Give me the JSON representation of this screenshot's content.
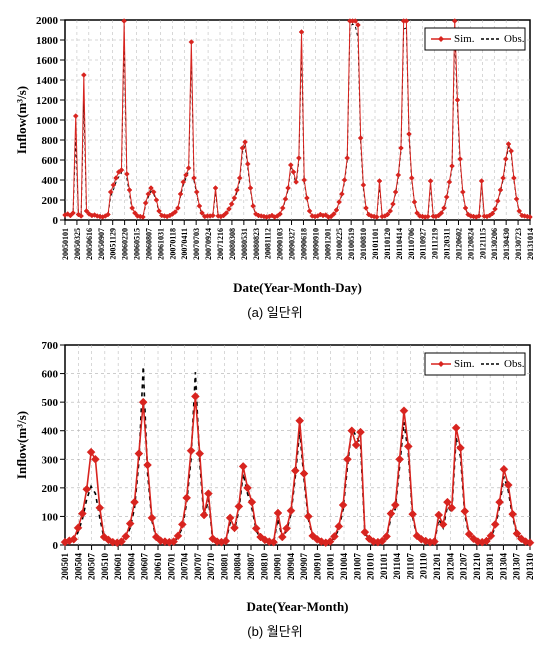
{
  "chartA": {
    "type": "line",
    "xlabel": "Date(Year-Month-Day)",
    "xlabel_fontsize": 13,
    "ylabel": "Inflow(m³/s)",
    "ylabel_fontsize": 13,
    "ylim": [
      0,
      2000
    ],
    "ytick_step": 200,
    "xtick_labels": [
      "20050101",
      "20050325",
      "20050616",
      "20050907",
      "20051129",
      "20060220",
      "20060515",
      "20060807",
      "20061031",
      "20070118",
      "20070411",
      "20070703",
      "20070924",
      "20071216",
      "20080308",
      "20080531",
      "20080823",
      "20081112",
      "20090103",
      "20090327",
      "20090618",
      "20090910",
      "20091201",
      "20100225",
      "20100519",
      "20100810",
      "20101101",
      "20110120",
      "20110414",
      "20110706",
      "20110927",
      "20111219",
      "20120311",
      "20120602",
      "20120824",
      "20121115",
      "20130206",
      "20130430",
      "20130723",
      "20131014"
    ],
    "legend": [
      "Sim.",
      "Obs."
    ],
    "sim_color": "#d8241f",
    "obs_color": "#000000",
    "grid_color": "#b0b0b0",
    "axis_color": "#000000",
    "background_color": "#ffffff",
    "sim_line_width": 1.0,
    "obs_line_width": 1.0,
    "marker_style_sim": "diamond",
    "marker_size_sim": 2.5,
    "obs_dash": "3,3",
    "caption": "(a) 일단위",
    "series_sim": [
      50,
      60,
      45,
      70,
      1040,
      55,
      40,
      1450,
      90,
      60,
      45,
      50,
      40,
      35,
      30,
      40,
      55,
      280,
      350,
      420,
      480,
      500,
      1990,
      460,
      300,
      120,
      70,
      40,
      35,
      30,
      170,
      260,
      320,
      280,
      200,
      90,
      45,
      40,
      35,
      45,
      60,
      80,
      120,
      260,
      380,
      450,
      520,
      1780,
      420,
      280,
      140,
      70,
      35,
      40,
      40,
      45,
      320,
      40,
      35,
      45,
      70,
      110,
      160,
      220,
      300,
      420,
      720,
      780,
      560,
      320,
      140,
      60,
      45,
      40,
      35,
      30,
      35,
      45,
      30,
      40,
      60,
      120,
      210,
      320,
      550,
      480,
      380,
      620,
      1880,
      400,
      220,
      90,
      40,
      35,
      40,
      55,
      45,
      50,
      30,
      35,
      60,
      100,
      180,
      260,
      400,
      620,
      1990,
      1990,
      1990,
      1950,
      820,
      350,
      120,
      55,
      40,
      35,
      30,
      390,
      35,
      40,
      55,
      90,
      160,
      280,
      450,
      720,
      1990,
      1990,
      860,
      420,
      180,
      70,
      40,
      35,
      30,
      35,
      390,
      38,
      35,
      45,
      70,
      120,
      230,
      380,
      540,
      1990,
      1200,
      610,
      280,
      120,
      55,
      40,
      35,
      30,
      40,
      390,
      38,
      35,
      45,
      65,
      110,
      190,
      300,
      420,
      610,
      760,
      690,
      420,
      210,
      90,
      45,
      40,
      35,
      30
    ],
    "series_obs": [
      40,
      50,
      40,
      60,
      820,
      45,
      35,
      1200,
      75,
      50,
      40,
      45,
      35,
      28,
      25,
      35,
      45,
      240,
      300,
      380,
      430,
      470,
      1820,
      420,
      260,
      100,
      60,
      35,
      30,
      28,
      150,
      230,
      290,
      260,
      180,
      80,
      40,
      35,
      30,
      40,
      55,
      70,
      110,
      240,
      350,
      420,
      490,
      1650,
      390,
      260,
      125,
      60,
      30,
      35,
      35,
      40,
      280,
      35,
      30,
      40,
      60,
      100,
      150,
      200,
      280,
      390,
      680,
      740,
      520,
      300,
      130,
      55,
      40,
      35,
      30,
      27,
      32,
      40,
      28,
      35,
      55,
      110,
      200,
      300,
      520,
      460,
      360,
      590,
      1750,
      380,
      210,
      85,
      37,
      30,
      35,
      50,
      40,
      45,
      28,
      32,
      55,
      95,
      170,
      250,
      380,
      590,
      1930,
      1960,
      1940,
      1820,
      770,
      320,
      110,
      50,
      37,
      32,
      28,
      350,
      32,
      35,
      50,
      85,
      150,
      265,
      430,
      690,
      1910,
      1920,
      820,
      400,
      170,
      65,
      37,
      32,
      28,
      32,
      350,
      35,
      32,
      40,
      65,
      112,
      220,
      360,
      520,
      1880,
      1130,
      580,
      265,
      112,
      50,
      36,
      32,
      28,
      36,
      350,
      35,
      32,
      40,
      60,
      102,
      180,
      285,
      400,
      585,
      730,
      660,
      400,
      200,
      85,
      40,
      35,
      30,
      28
    ]
  },
  "chartB": {
    "type": "line",
    "xlabel": "Date(Year-Month)",
    "xlabel_fontsize": 13,
    "ylabel": "Inflow(m³/s)",
    "ylabel_fontsize": 13,
    "ylim": [
      0,
      700
    ],
    "ytick_step": 100,
    "xtick_labels": [
      "200501",
      "200504",
      "200507",
      "200510",
      "200601",
      "200604",
      "200607",
      "200610",
      "200701",
      "200704",
      "200707",
      "200710",
      "200801",
      "200804",
      "200807",
      "200810",
      "200901",
      "200904",
      "200907",
      "200910",
      "201001",
      "201004",
      "201007",
      "201010",
      "201101",
      "201104",
      "201107",
      "201110",
      "201201",
      "201204",
      "201207",
      "201210",
      "201301",
      "201304",
      "201307",
      "201310"
    ],
    "legend": [
      "Sim.",
      "Obs."
    ],
    "sim_color": "#d8241f",
    "obs_color": "#000000",
    "grid_color": "#b0b0b0",
    "axis_color": "#000000",
    "background_color": "#ffffff",
    "sim_line_width": 1.6,
    "obs_line_width": 1.6,
    "marker_style_sim": "diamond",
    "marker_size_sim": 4,
    "obs_dash": "4,4",
    "caption": "(b) 월단위",
    "series_sim": [
      10,
      15,
      20,
      60,
      110,
      195,
      325,
      300,
      130,
      28,
      18,
      10,
      8,
      12,
      30,
      75,
      150,
      320,
      500,
      280,
      95,
      28,
      15,
      12,
      10,
      12,
      32,
      72,
      165,
      330,
      520,
      320,
      105,
      180,
      22,
      12,
      10,
      14,
      95,
      60,
      135,
      275,
      200,
      150,
      58,
      28,
      18,
      12,
      10,
      112,
      28,
      58,
      120,
      260,
      435,
      250,
      100,
      32,
      20,
      12,
      8,
      12,
      30,
      65,
      140,
      300,
      400,
      350,
      395,
      45,
      22,
      12,
      10,
      14,
      30,
      110,
      140,
      300,
      470,
      345,
      108,
      32,
      20,
      14,
      10,
      12,
      105,
      72,
      150,
      130,
      410,
      340,
      118,
      38,
      22,
      12,
      10,
      14,
      32,
      72,
      150,
      265,
      210,
      108,
      40,
      22,
      12,
      8
    ],
    "series_obs": [
      8,
      12,
      15,
      45,
      90,
      160,
      205,
      180,
      95,
      22,
      15,
      9,
      7,
      10,
      25,
      60,
      130,
      290,
      625,
      250,
      85,
      24,
      13,
      10,
      8,
      10,
      28,
      60,
      148,
      300,
      605,
      290,
      92,
      160,
      18,
      10,
      8,
      12,
      78,
      52,
      120,
      250,
      180,
      130,
      50,
      24,
      15,
      10,
      8,
      92,
      24,
      50,
      108,
      240,
      400,
      230,
      90,
      28,
      18,
      10,
      7,
      10,
      25,
      55,
      125,
      275,
      410,
      380,
      355,
      40,
      20,
      11,
      8,
      12,
      27,
      95,
      126,
      275,
      430,
      320,
      98,
      28,
      18,
      12,
      8,
      10,
      90,
      60,
      135,
      115,
      375,
      310,
      105,
      33,
      20,
      11,
      8,
      12,
      28,
      62,
      135,
      240,
      190,
      98,
      35,
      20,
      10,
      7
    ]
  }
}
